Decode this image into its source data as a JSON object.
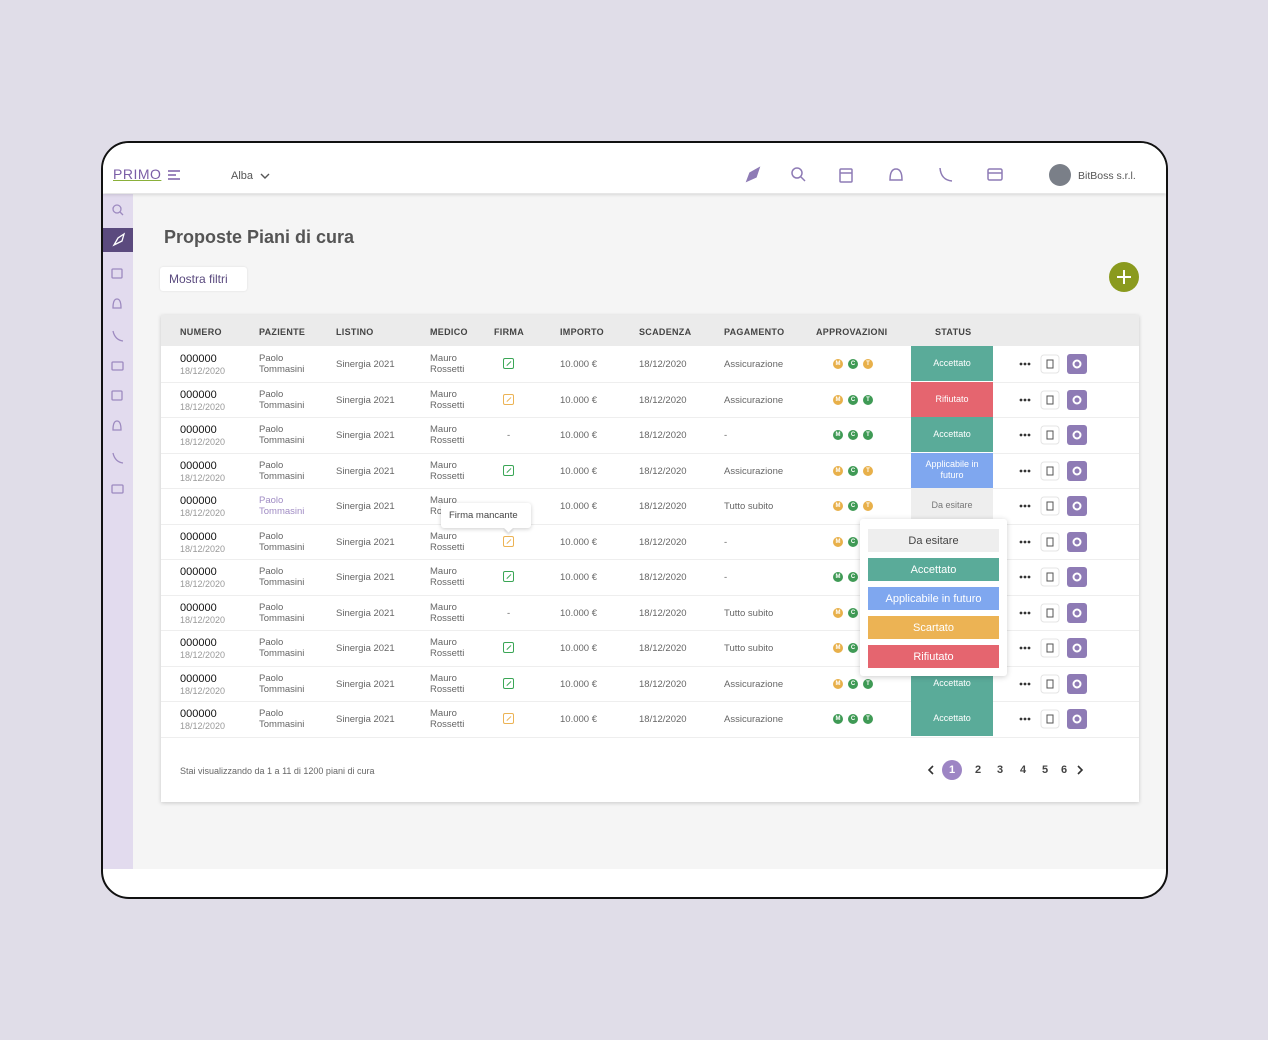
{
  "header": {
    "logo": "PRIMO",
    "location": "Alba",
    "user": "BitBoss s.r.l."
  },
  "page": {
    "title": "Proposte Piani di cura",
    "filter_button": "Mostra filtri"
  },
  "table": {
    "columns": [
      "NUMERO",
      "PAZIENTE",
      "LISTINO",
      "MEDICO",
      "FIRMA",
      "IMPORTO",
      "SCADENZA",
      "PAGAMENTO",
      "APPROVAZIONI",
      "STATUS"
    ],
    "rows": [
      {
        "numero": "000000",
        "data": "18/12/2020",
        "paziente": "Paolo Tommasini",
        "listino": "Sinergia 2021",
        "medico": "Mauro Rossetti",
        "firma": {
          "color": "#3aa655"
        },
        "importo": "10.000 €",
        "scadenza": "18/12/2020",
        "pagamento": "Assicurazione",
        "approvazioni": [
          {
            "label": "M",
            "color": "#e8b04a"
          },
          {
            "label": "C",
            "color": "#3f9a55"
          },
          {
            "label": "T",
            "color": "#e8b04a"
          }
        ],
        "status": {
          "label": "Accettato",
          "color": "#5aab99"
        }
      },
      {
        "numero": "000000",
        "data": "18/12/2020",
        "paziente": "Paolo Tommasini",
        "listino": "Sinergia 2021",
        "medico": "Mauro Rossetti",
        "firma": {
          "color": "#ecb354"
        },
        "importo": "10.000 €",
        "scadenza": "18/12/2020",
        "pagamento": "Assicurazione",
        "approvazioni": [
          {
            "label": "M",
            "color": "#e8b04a"
          },
          {
            "label": "C",
            "color": "#3f9a55"
          },
          {
            "label": "T",
            "color": "#3f9a55"
          }
        ],
        "status": {
          "label": "Rifiutato",
          "color": "#e5656f"
        }
      },
      {
        "numero": "000000",
        "data": "18/12/2020",
        "paziente": "Paolo Tommasini",
        "listino": "Sinergia 2021",
        "medico": "Mauro Rossetti",
        "firma": "-",
        "importo": "10.000 €",
        "scadenza": "18/12/2020",
        "pagamento": "-",
        "approvazioni": [
          {
            "label": "M",
            "color": "#3f9a55"
          },
          {
            "label": "C",
            "color": "#3f9a55"
          },
          {
            "label": "T",
            "color": "#3f9a55"
          }
        ],
        "status": {
          "label": "Accettato",
          "color": "#5aab99"
        }
      },
      {
        "numero": "000000",
        "data": "18/12/2020",
        "paziente": "Paolo Tommasini",
        "listino": "Sinergia 2021",
        "medico": "Mauro Rossetti",
        "firma": {
          "color": "#3aa655"
        },
        "importo": "10.000 €",
        "scadenza": "18/12/2020",
        "pagamento": "Assicurazione",
        "approvazioni": [
          {
            "label": "M",
            "color": "#e8b04a"
          },
          {
            "label": "C",
            "color": "#3f9a55"
          },
          {
            "label": "T",
            "color": "#e8b04a"
          }
        ],
        "status": {
          "label": "Applicabile in futuro",
          "color": "#7fa7ef"
        }
      },
      {
        "numero": "000000",
        "data": "18/12/2020",
        "paziente": "Paolo Tommasini",
        "listino": "Sinergia 2021",
        "medico": "Mauro Rossetti",
        "firma": null,
        "importo": "10.000 €",
        "scadenza": "18/12/2020",
        "pagamento": "Tutto subito",
        "approvazioni": [
          {
            "label": "M",
            "color": "#e8b04a"
          },
          {
            "label": "C",
            "color": "#3f9a55"
          },
          {
            "label": "T",
            "color": "#e8b04a"
          }
        ],
        "status": {
          "label": "Da esitare",
          "color": "#eeeeee"
        }
      },
      {
        "numero": "000000",
        "data": "18/12/2020",
        "paziente": "Paolo Tommasini",
        "listino": "Sinergia 2021",
        "medico": "Mauro Rossetti",
        "firma": {
          "color": "#ecb354"
        },
        "importo": "10.000 €",
        "scadenza": "18/12/2020",
        "pagamento": "-",
        "approvazioni": [
          {
            "label": "M",
            "color": "#e8b04a"
          },
          {
            "label": "C",
            "color": "#3f9a55"
          }
        ],
        "status": null
      },
      {
        "numero": "000000",
        "data": "18/12/2020",
        "paziente": "Paolo Tommasini",
        "listino": "Sinergia 2021",
        "medico": "Mauro Rossetti",
        "firma": {
          "color": "#3aa655"
        },
        "importo": "10.000 €",
        "scadenza": "18/12/2020",
        "pagamento": "-",
        "approvazioni": [
          {
            "label": "M",
            "color": "#3f9a55"
          },
          {
            "label": "C",
            "color": "#3f9a55"
          }
        ],
        "status": null
      },
      {
        "numero": "000000",
        "data": "18/12/2020",
        "paziente": "Paolo Tommasini",
        "listino": "Sinergia 2021",
        "medico": "Mauro Rossetti",
        "firma": "-",
        "importo": "10.000 €",
        "scadenza": "18/12/2020",
        "pagamento": "Tutto subito",
        "approvazioni": [
          {
            "label": "M",
            "color": "#e8b04a"
          },
          {
            "label": "C",
            "color": "#3f9a55"
          }
        ],
        "status": null
      },
      {
        "numero": "000000",
        "data": "18/12/2020",
        "paziente": "Paolo Tommasini",
        "listino": "Sinergia 2021",
        "medico": "Mauro Rossetti",
        "firma": {
          "color": "#3aa655"
        },
        "importo": "10.000 €",
        "scadenza": "18/12/2020",
        "pagamento": "Tutto subito",
        "approvazioni": [
          {
            "label": "M",
            "color": "#e8b04a"
          },
          {
            "label": "C",
            "color": "#3f9a55"
          }
        ],
        "status": null
      },
      {
        "numero": "000000",
        "data": "18/12/2020",
        "paziente": "Paolo Tommasini",
        "listino": "Sinergia 2021",
        "medico": "Mauro Rossetti",
        "firma": {
          "color": "#3aa655"
        },
        "importo": "10.000 €",
        "scadenza": "18/12/2020",
        "pagamento": "Assicurazione",
        "approvazioni": [
          {
            "label": "M",
            "color": "#e8b04a"
          },
          {
            "label": "C",
            "color": "#3f9a55"
          },
          {
            "label": "T",
            "color": "#3f9a55"
          }
        ],
        "status": {
          "label": "Accettato",
          "color": "#5aab99"
        }
      },
      {
        "numero": "000000",
        "data": "18/12/2020",
        "paziente": "Paolo Tommasini",
        "listino": "Sinergia 2021",
        "medico": "Mauro Rossetti",
        "firma": {
          "color": "#ecb354"
        },
        "importo": "10.000 €",
        "scadenza": "18/12/2020",
        "pagamento": "Assicurazione",
        "approvazioni": [
          {
            "label": "M",
            "color": "#3f9a55"
          },
          {
            "label": "C",
            "color": "#3f9a55"
          },
          {
            "label": "T",
            "color": "#3f9a55"
          }
        ],
        "status": {
          "label": "Accettato",
          "color": "#5aab99"
        }
      }
    ]
  },
  "tooltip": "Firma mancante",
  "status_menu": [
    {
      "label": "Da esitare",
      "color": "#eeeeee"
    },
    {
      "label": "Accettato",
      "color": "#5aab99"
    },
    {
      "label": "Applicabile in futuro",
      "color": "#7fa7ef"
    },
    {
      "label": "Scartato",
      "color": "#ecb354"
    },
    {
      "label": "Rifiutato",
      "color": "#e5656f"
    }
  ],
  "footer": {
    "summary": "Stai visualizzando da 1 a 11 di 1200 piani di cura",
    "pages": [
      1,
      2,
      3,
      4,
      5,
      6
    ],
    "current": 1
  }
}
